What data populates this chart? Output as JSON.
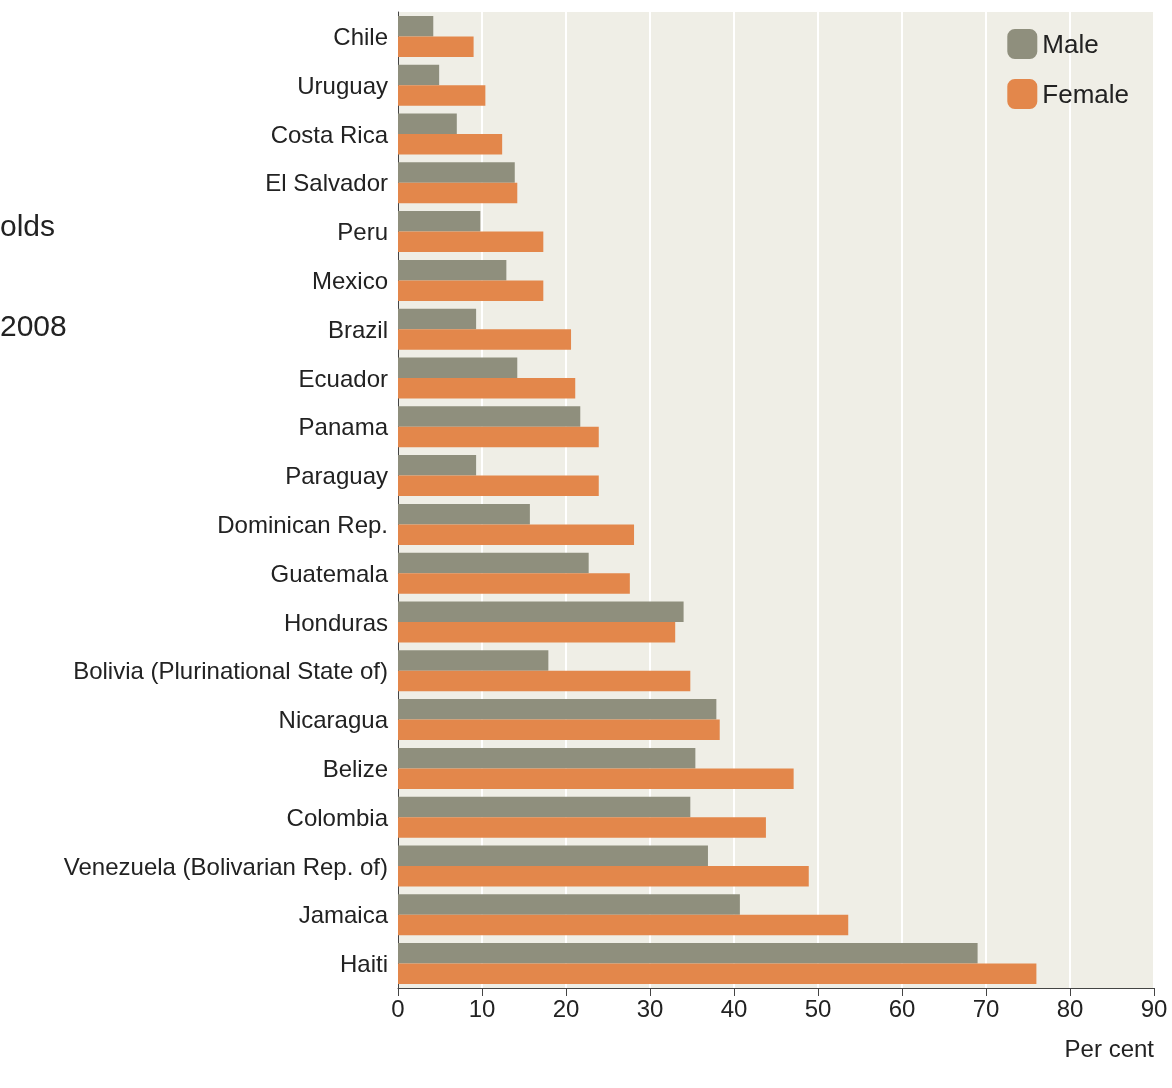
{
  "chart_data": {
    "type": "bar",
    "orientation": "horizontal",
    "xlabel": "Per cent",
    "annotations": [
      "olds",
      "2008"
    ],
    "categories": [
      "Chile",
      "Uruguay",
      "Costa Rica",
      "El Salvador",
      "Peru",
      "Mexico",
      "Brazil",
      "Ecuador",
      "Panama",
      "Paraguay",
      "Dominican Rep.",
      "Guatemala",
      "Honduras",
      "Bolivia (Plurinational State of)",
      "Nicaragua",
      "Belize",
      "Colombia",
      "Venezuela (Bolivarian Rep. of)",
      "Jamaica",
      "Haiti"
    ],
    "series": [
      {
        "name": "Male",
        "color": "#8f8f7d",
        "values": [
          4.2,
          4.9,
          7.0,
          13.9,
          9.8,
          12.9,
          9.3,
          14.2,
          21.7,
          9.3,
          15.7,
          22.7,
          34.0,
          17.9,
          37.9,
          35.4,
          34.8,
          36.9,
          40.7,
          69.0
        ]
      },
      {
        "name": "Female",
        "color": "#e3874b",
        "values": [
          9.0,
          10.4,
          12.4,
          14.2,
          17.3,
          17.3,
          20.6,
          21.1,
          23.9,
          23.9,
          28.1,
          27.6,
          33.0,
          34.8,
          38.3,
          47.1,
          43.8,
          48.9,
          53.6,
          76.0
        ]
      }
    ],
    "xlim": [
      0,
      90
    ],
    "xticks": [
      0,
      10,
      20,
      30,
      40,
      50,
      60,
      70,
      80,
      90
    ],
    "grid": "x",
    "legend": "top right"
  }
}
